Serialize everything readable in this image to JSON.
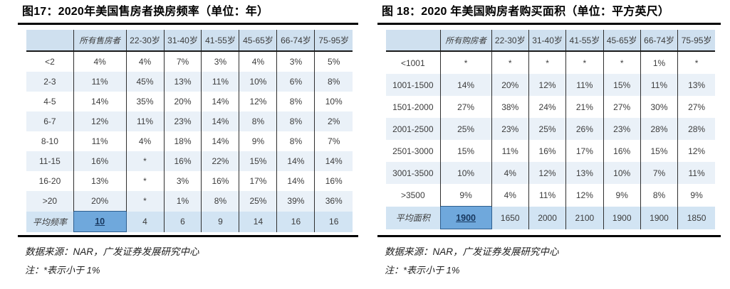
{
  "colors": {
    "header_bg": "#cfe0ef",
    "tint_row_bg": "#eaf1f8",
    "summary_row_bg": "#d2e4f3",
    "highlight_cell_bg": "#6fa8dc",
    "rule_color": "#000000",
    "grid_line_color": "#2f2f2f",
    "summary_value_color": "#17375e"
  },
  "chart_data": [
    {
      "type": "table",
      "title": "图17：2020年美国售房者换房频率（单位：年）",
      "columns": [
        "",
        "所有售房者",
        "22-30岁",
        "31-40岁",
        "41-55岁",
        "45-65岁",
        "66-74岁",
        "75-95岁"
      ],
      "rows": [
        [
          "<2",
          "4%",
          "4%",
          "7%",
          "3%",
          "4%",
          "3%",
          "5%"
        ],
        [
          "2-3",
          "11%",
          "45%",
          "13%",
          "11%",
          "10%",
          "6%",
          "8%"
        ],
        [
          "4-5",
          "14%",
          "35%",
          "20%",
          "14%",
          "12%",
          "8%",
          "10%"
        ],
        [
          "6-7",
          "12%",
          "11%",
          "23%",
          "14%",
          "8%",
          "8%",
          "2%"
        ],
        [
          "8-10",
          "11%",
          "4%",
          "18%",
          "14%",
          "9%",
          "8%",
          "7%"
        ],
        [
          "11-15",
          "16%",
          "*",
          "16%",
          "22%",
          "15%",
          "14%",
          "14%"
        ],
        [
          "16-20",
          "13%",
          "*",
          "3%",
          "16%",
          "17%",
          "14%",
          "16%"
        ],
        [
          ">20",
          "20%",
          "*",
          "1%",
          "8%",
          "25%",
          "39%",
          "36%"
        ]
      ],
      "summary": [
        "平均频率",
        "10",
        "4",
        "6",
        "9",
        "14",
        "16",
        "16"
      ],
      "source": "数据来源：NAR，广发证券发展研究中心",
      "note": "注：*表示小于 1%"
    },
    {
      "type": "table",
      "title": "图 18：2020 年美国购房者购买面积（单位：平方英尺）",
      "columns": [
        "",
        "所有购房者",
        "22-30岁",
        "31-40岁",
        "41-55岁",
        "45-65岁",
        "66-74岁",
        "75-95岁"
      ],
      "rows": [
        [
          "<1001",
          "*",
          "*",
          "*",
          "*",
          "*",
          "1%",
          "*"
        ],
        [
          "1001-1500",
          "14%",
          "20%",
          "12%",
          "11%",
          "15%",
          "11%",
          "13%"
        ],
        [
          "1501-2000",
          "27%",
          "38%",
          "24%",
          "21%",
          "27%",
          "30%",
          "27%"
        ],
        [
          "2001-2500",
          "25%",
          "23%",
          "25%",
          "26%",
          "23%",
          "28%",
          "28%"
        ],
        [
          "2501-3000",
          "15%",
          "11%",
          "16%",
          "17%",
          "16%",
          "15%",
          "12%"
        ],
        [
          "3001-3500",
          "10%",
          "4%",
          "12%",
          "13%",
          "10%",
          "7%",
          "11%"
        ],
        [
          ">3500",
          "9%",
          "4%",
          "11%",
          "12%",
          "9%",
          "8%",
          "9%"
        ]
      ],
      "summary": [
        "平均面积",
        "1900",
        "1650",
        "2000",
        "2100",
        "1900",
        "1900",
        "1850"
      ],
      "source": "数据来源：NAR，广发证券发展研究中心",
      "note": "注：*表示小于 1%"
    }
  ]
}
